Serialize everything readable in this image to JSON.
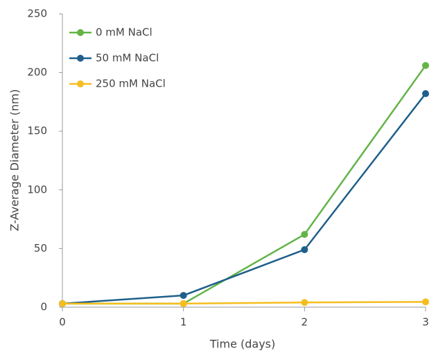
{
  "chart_data": {
    "type": "line",
    "x_label": "Time (days)",
    "y_label": "Z-Average Diameter (nm)",
    "x": [
      0,
      1,
      2,
      3
    ],
    "series": [
      {
        "name": "0 mM NaCl",
        "color": "#62b446",
        "values": [
          3,
          3,
          62,
          206
        ]
      },
      {
        "name": "50 mM NaCl",
        "color": "#1f5f8b",
        "values": [
          3,
          10,
          49,
          182
        ]
      },
      {
        "name": "250 mM NaCl",
        "color": "#f5bd1f",
        "values": [
          3,
          3,
          4,
          4.5
        ]
      }
    ],
    "xlim": [
      0,
      3
    ],
    "xticks": [
      0,
      1,
      2,
      3
    ],
    "ylim": [
      0,
      250
    ],
    "yticks": [
      0,
      50,
      100,
      150,
      200,
      250
    ],
    "legend": "upper-left"
  }
}
